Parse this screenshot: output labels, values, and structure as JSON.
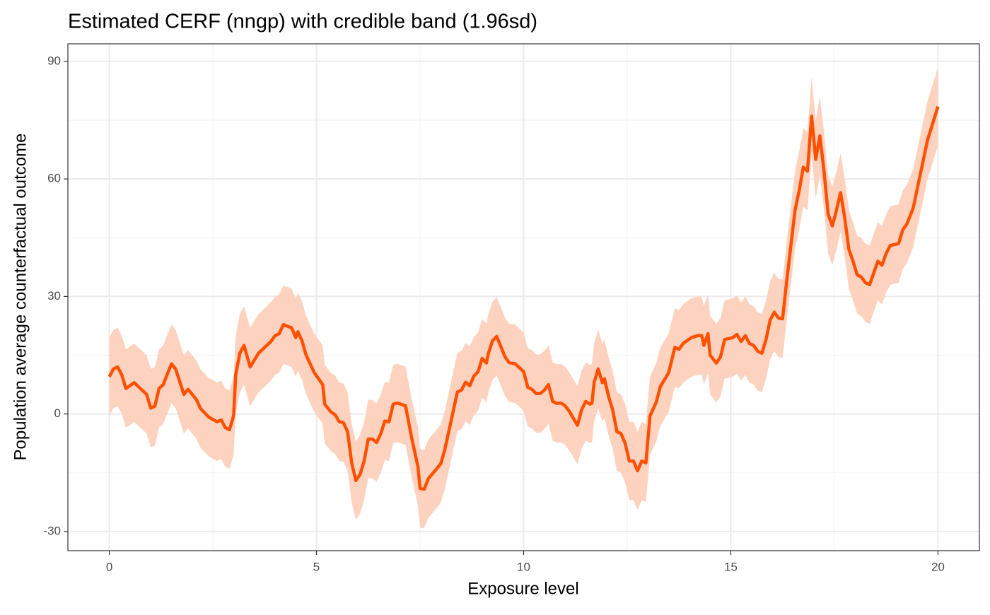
{
  "chart_data": {
    "type": "line_band",
    "title": "Estimated CERF (nngp) with credible band (1.96sd)",
    "xlabel": "Exposure level",
    "ylabel": "Population average counterfactual outcome",
    "xlim": [
      -1,
      21
    ],
    "ylim": [
      -34.9,
      94.5
    ],
    "xticks": [
      0,
      5,
      10,
      15,
      20
    ],
    "yticks": [
      -30,
      0,
      30,
      60,
      90
    ],
    "xminorticks": [
      2.5,
      7.5,
      12.5,
      17.5
    ],
    "yminorticks": [
      -15,
      15,
      45,
      75
    ],
    "grid": true,
    "line_color": "#ff5000",
    "band_color": "#fdd2bf",
    "x": [
      0,
      0.1,
      0.2,
      0.3,
      0.4,
      0.6,
      0.8,
      0.9,
      1,
      1.1,
      1.2,
      1.3,
      1.5,
      1.6,
      1.8,
      1.9,
      2.1,
      2.2,
      2.4,
      2.6,
      2.7,
      2.8,
      2.9,
      3,
      3.05,
      3.15,
      3.25,
      3.4,
      3.6,
      3.8,
      3.9,
      4,
      4.1,
      4.2,
      4.4,
      4.5,
      4.55,
      4.65,
      4.75,
      4.95,
      5.15,
      5.2,
      5.35,
      5.45,
      5.55,
      5.65,
      5.75,
      5.85,
      5.95,
      6.05,
      6.15,
      6.25,
      6.35,
      6.45,
      6.55,
      6.65,
      6.75,
      6.85,
      6.95,
      7.15,
      7.25,
      7.3,
      7.45,
      7.5,
      7.6,
      7.7,
      7.9,
      8,
      8.1,
      8.3,
      8.4,
      8.5,
      8.6,
      8.7,
      8.8,
      8.9,
      9,
      9.1,
      9.15,
      9.25,
      9.35,
      9.55,
      9.65,
      9.8,
      10,
      10.1,
      10.2,
      10.3,
      10.4,
      10.5,
      10.6,
      10.7,
      10.8,
      10.9,
      11,
      11.1,
      11.3,
      11.4,
      11.5,
      11.6,
      11.65,
      11.7,
      11.8,
      11.9,
      11.95,
      12.05,
      12.15,
      12.25,
      12.35,
      12.45,
      12.55,
      12.65,
      12.75,
      12.85,
      12.95,
      13.05,
      13.2,
      13.3,
      13.5,
      13.65,
      13.75,
      13.85,
      14.05,
      14.2,
      14.3,
      14.35,
      14.45,
      14.5,
      14.65,
      14.75,
      14.85,
      15.05,
      15.15,
      15.25,
      15.35,
      15.45,
      15.55,
      15.65,
      15.75,
      15.85,
      15.95,
      16.05,
      16.15,
      16.25,
      16.35,
      16.45,
      16.55,
      16.65,
      16.75,
      16.85,
      16.95,
      17.05,
      17.15,
      17.25,
      17.35,
      17.45,
      17.55,
      17.65,
      17.75,
      17.85,
      17.95,
      18.05,
      18.15,
      18.25,
      18.35,
      18.45,
      18.55,
      18.65,
      18.75,
      18.85,
      19.05,
      19.15,
      19.25,
      19.4,
      19.55,
      19.75,
      20
    ],
    "values": [
      9.5,
      11.5,
      12,
      10,
      6.5,
      8,
      6,
      5,
      1.5,
      2,
      6.5,
      7.5,
      12.8,
      11.5,
      5,
      6.3,
      3.7,
      1.4,
      -0.8,
      -2,
      -1.5,
      -3.5,
      -4,
      -0.5,
      10,
      15.5,
      17.5,
      12,
      15.5,
      17.5,
      18.5,
      20,
      20.5,
      22.8,
      22,
      19.5,
      21,
      18.7,
      15,
      10.5,
      7.5,
      2.5,
      0.5,
      -0.2,
      -2,
      -2.2,
      -4.5,
      -12.5,
      -17,
      -15.5,
      -12,
      -6.4,
      -6.4,
      -7.3,
      -5.1,
      -1.8,
      -2,
      2.5,
      2.8,
      2.1,
      -3.5,
      -6.2,
      -13.5,
      -19,
      -19.2,
      -16.5,
      -14,
      -12.7,
      -9,
      0.7,
      5.6,
      6.1,
      8.1,
      7.2,
      9.7,
      10.8,
      14.2,
      13,
      15.5,
      18.7,
      19.8,
      14.6,
      13.1,
      12.8,
      10.8,
      6.8,
      6.3,
      5.2,
      5.2,
      6.1,
      7.5,
      3.2,
      2.7,
      2.8,
      2.1,
      0.7,
      -2.9,
      1.1,
      3.2,
      2.5,
      2.8,
      8,
      11.5,
      8,
      9,
      4.5,
      1,
      -4.5,
      -5,
      -7.5,
      -12,
      -12,
      -14.5,
      -12,
      -12.5,
      -0.5,
      3,
      7,
      10.5,
      17,
      16.5,
      18,
      19.5,
      20,
      20,
      17.5,
      20.5,
      15,
      13,
      14.5,
      19,
      19.5,
      20.3,
      18.5,
      20,
      18,
      17.5,
      16,
      15.5,
      19,
      24,
      26,
      24.5,
      24.3,
      34,
      43,
      52,
      57,
      63,
      62,
      76,
      65,
      71,
      62,
      51,
      48,
      52,
      56.5,
      50,
      42,
      39,
      35.5,
      35,
      33.5,
      33,
      36,
      39,
      38,
      41,
      43,
      43.5,
      47,
      48.5,
      52.5,
      60,
      70,
      78.5
    ],
    "upper": [
      19.5,
      21.5,
      22,
      20,
      16.5,
      18,
      16,
      15,
      11.5,
      12,
      16.5,
      17.5,
      22.8,
      21.5,
      15,
      16.3,
      13.7,
      11.4,
      9.2,
      8,
      8.5,
      6.5,
      6,
      9.5,
      20,
      25.5,
      27.5,
      22,
      25.5,
      27.5,
      28.5,
      30,
      30.5,
      32.8,
      32,
      29.5,
      31,
      28.7,
      25,
      20.5,
      17.5,
      12.5,
      10.5,
      9.8,
      8,
      7.8,
      5.5,
      -2.5,
      -7,
      -5.5,
      -2,
      3.6,
      3.6,
      2.7,
      4.9,
      8.2,
      8,
      12.5,
      12.8,
      12.1,
      6.5,
      3.8,
      -3.5,
      -9,
      -9.2,
      -6.5,
      -4,
      -2.7,
      1,
      10.7,
      15.6,
      16.1,
      18.1,
      17.2,
      19.7,
      20.8,
      24.2,
      23,
      25.5,
      28.7,
      29.8,
      24.6,
      23.1,
      22.8,
      20.8,
      16.8,
      16.3,
      15.2,
      15.2,
      16.1,
      17.5,
      13.2,
      12.7,
      12.8,
      12.1,
      10.7,
      7.1,
      11.1,
      13.2,
      12.5,
      12.8,
      18,
      21.5,
      18,
      19,
      14.5,
      11,
      5.5,
      5,
      2.5,
      -2,
      -2,
      -4.5,
      -2,
      -2.5,
      9.5,
      13,
      17,
      20.5,
      27,
      26.5,
      28,
      29.5,
      30,
      30,
      27.5,
      30.5,
      25,
      23,
      24.5,
      29,
      29.5,
      30.3,
      28.5,
      30,
      28,
      27.5,
      26,
      25.5,
      29,
      34,
      36,
      34.5,
      34.3,
      44,
      53,
      62,
      67,
      73,
      72,
      86,
      75,
      81,
      72,
      61,
      58,
      62,
      66.5,
      60,
      52,
      49,
      45.5,
      45,
      43.5,
      43,
      46,
      49,
      48,
      51,
      53,
      53.5,
      57,
      58.5,
      62.5,
      70,
      80,
      88.5
    ],
    "lower": [
      -0.5,
      1.5,
      2,
      0,
      -3.5,
      -2,
      -4,
      -5,
      -8.5,
      -8,
      -3.5,
      -2.5,
      2.8,
      1.5,
      -5,
      -3.7,
      -6.3,
      -8.6,
      -10.8,
      -12,
      -11.5,
      -13.5,
      -14,
      -10.5,
      0,
      5.5,
      7.5,
      2,
      5.5,
      7.5,
      8.5,
      10,
      10.5,
      12.8,
      12,
      9.5,
      11,
      8.7,
      5,
      0.5,
      -2.5,
      -7.5,
      -9.5,
      -10.2,
      -12,
      -12.2,
      -14.5,
      -22.5,
      -27,
      -25.5,
      -22,
      -16.4,
      -16.4,
      -17.3,
      -15.1,
      -11.8,
      -12,
      -7.5,
      -7.2,
      -7.9,
      -13.5,
      -16.2,
      -23.5,
      -29,
      -29.2,
      -26.5,
      -24,
      -22.7,
      -19,
      -9.3,
      -4.4,
      -3.9,
      -1.9,
      -2.8,
      -0.3,
      0.8,
      4.2,
      3,
      5.5,
      8.7,
      9.8,
      4.6,
      3.1,
      2.8,
      0.8,
      -3.2,
      -3.7,
      -4.8,
      -4.8,
      -3.9,
      -2.5,
      -6.8,
      -7.3,
      -7.2,
      -7.9,
      -9.3,
      -12.9,
      -8.9,
      -6.8,
      -7.5,
      -7.2,
      -2,
      1.5,
      -2,
      -1,
      -5.5,
      -9,
      -14.5,
      -15,
      -17.5,
      -22,
      -22,
      -24.5,
      -22,
      -22.5,
      -10.5,
      -7,
      -3,
      0.5,
      7,
      6.5,
      8,
      9.5,
      10,
      10,
      7.5,
      10.5,
      5,
      3,
      4.5,
      9,
      9.5,
      10.3,
      8.5,
      10,
      8,
      7.5,
      6,
      5.5,
      9,
      14,
      16,
      14.5,
      14.3,
      24,
      33,
      42,
      47,
      53,
      52,
      66,
      55,
      61,
      52,
      41,
      38,
      42,
      46.5,
      40,
      32,
      29,
      25.5,
      25,
      23.5,
      23,
      26,
      29,
      28,
      31,
      33,
      33.5,
      37,
      38.5,
      42.5,
      50,
      60,
      68.5
    ]
  }
}
